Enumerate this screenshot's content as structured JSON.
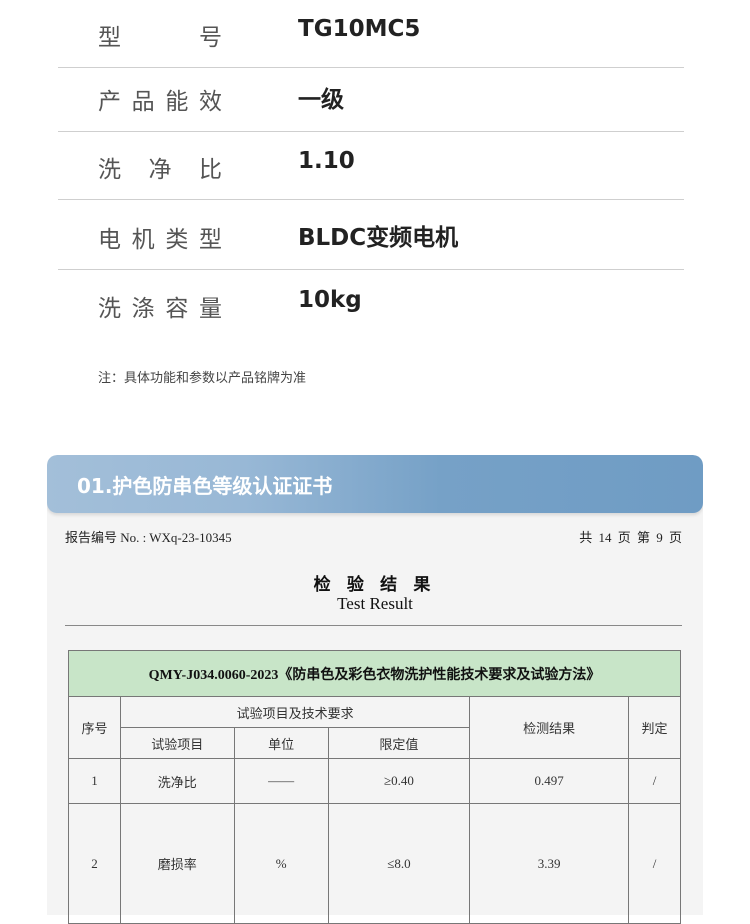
{
  "specs": [
    {
      "label": "型号",
      "value": "TG10MC5"
    },
    {
      "label": "产品能效",
      "value": "一级"
    },
    {
      "label": "洗净比",
      "value": "1.10"
    },
    {
      "label": "电机类型",
      "value": "BLDC变频电机"
    },
    {
      "label": "洗涤容量",
      "value": "10kg"
    }
  ],
  "note": "注：具体功能和参数以产品铭牌为准",
  "card": {
    "title": "01.护色防串色等级认证证书",
    "report_no": "报告编号 No. : WXq-23-10345",
    "page": "共 14 页 第 9 页",
    "heading": "检 验 结 果",
    "heading_en": "Test Result",
    "standard": "QMY-J034.0060-2023《防串色及彩色衣物洗护性能技术要求及试验方法》",
    "headers": {
      "no": "序号",
      "group": "试验项目及技术要求",
      "item": "试验项目",
      "unit": "单位",
      "limit": "限定值",
      "result": "检测结果",
      "verdict": "判定"
    },
    "rows": [
      {
        "no": "1",
        "item": "洗净比",
        "unit": "——",
        "limit": "≥0.40",
        "result": "0.497",
        "verdict": "/"
      },
      {
        "no": "2",
        "item": "磨损率",
        "unit": "%",
        "limit": "≤8.0",
        "result": "3.39",
        "verdict": "/"
      }
    ]
  }
}
